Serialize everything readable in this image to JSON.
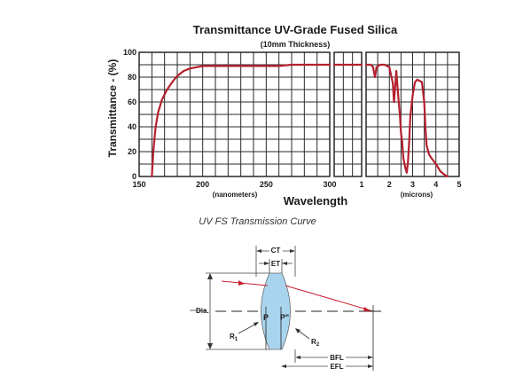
{
  "chart_data": {
    "type": "line",
    "title": "Transmittance UV-Grade Fused Silica",
    "subtitle": "(10mm Thickness)",
    "ylabel": "Transmittance - (%)",
    "xlabel": "Wavelength",
    "x_unit_nm": "(nanometers)",
    "x_unit_um": "(microns)",
    "ylim": [
      0,
      100
    ],
    "yticks": [
      "0",
      "20",
      "40",
      "60",
      "80",
      "100"
    ],
    "panels": [
      {
        "range": [
          150,
          300
        ],
        "unit": "nm",
        "ticks": [
          "150",
          "200",
          "250",
          "300"
        ]
      },
      {
        "range": [
          0.4,
          1.0
        ],
        "unit": "um",
        "ticks": [
          "1"
        ]
      },
      {
        "range": [
          1,
          5
        ],
        "unit": "um",
        "ticks": [
          "2",
          "3",
          "4",
          "5"
        ]
      }
    ],
    "series": [
      {
        "color": "#b5202e",
        "segments": [
          {
            "panel": 0,
            "x": [
              160,
              161,
              162,
              163,
              165,
              168,
              172,
              176,
              180,
              185,
              190,
              195,
              200,
              210,
              220,
              240,
              260,
              270,
              280,
              300
            ],
            "y": [
              0,
              18,
              30,
              40,
              52,
              62,
              70,
              76,
              81,
              85,
              87,
              88,
              89,
              89,
              89,
              89,
              89,
              90,
              90,
              90
            ]
          },
          {
            "panel": 1,
            "x": [
              0.4,
              0.6,
              0.8,
              1.0
            ],
            "y": [
              90,
              90,
              90,
              90
            ]
          },
          {
            "panel": 2,
            "x": [
              1.0,
              1.2,
              1.3,
              1.38,
              1.45,
              1.6,
              1.8,
              2.0,
              2.15,
              2.2,
              2.25,
              2.3,
              2.4,
              2.45,
              2.5,
              2.55,
              2.6,
              2.7,
              2.75,
              2.8,
              2.85,
              2.9,
              3.0,
              3.1,
              3.2,
              3.4,
              3.5,
              3.55,
              3.6,
              3.7,
              3.8,
              4.0,
              4.2,
              4.4,
              4.5
            ],
            "y": [
              90,
              90,
              88,
              80,
              88,
              90,
              90,
              88,
              75,
              60,
              72,
              85,
              60,
              50,
              35,
              28,
              15,
              6,
              3,
              12,
              28,
              48,
              65,
              76,
              78,
              76,
              60,
              40,
              25,
              18,
              15,
              10,
              4,
              1,
              0
            ]
          }
        ]
      }
    ]
  },
  "caption": "UV FS Transmission Curve",
  "lens_diagram": {
    "ct_label": "CT",
    "et_label": "ET",
    "dia_label": "Dia.",
    "p_label": "P",
    "p2_label": "P\"",
    "r1_label": "R",
    "r1_sub": "1",
    "r2_label": "R",
    "r2_sub": "2",
    "bfl_label": "BFL",
    "efl_label": "EFL",
    "lens_color": "#a9d4ee",
    "ray_color": "#c8202e"
  }
}
